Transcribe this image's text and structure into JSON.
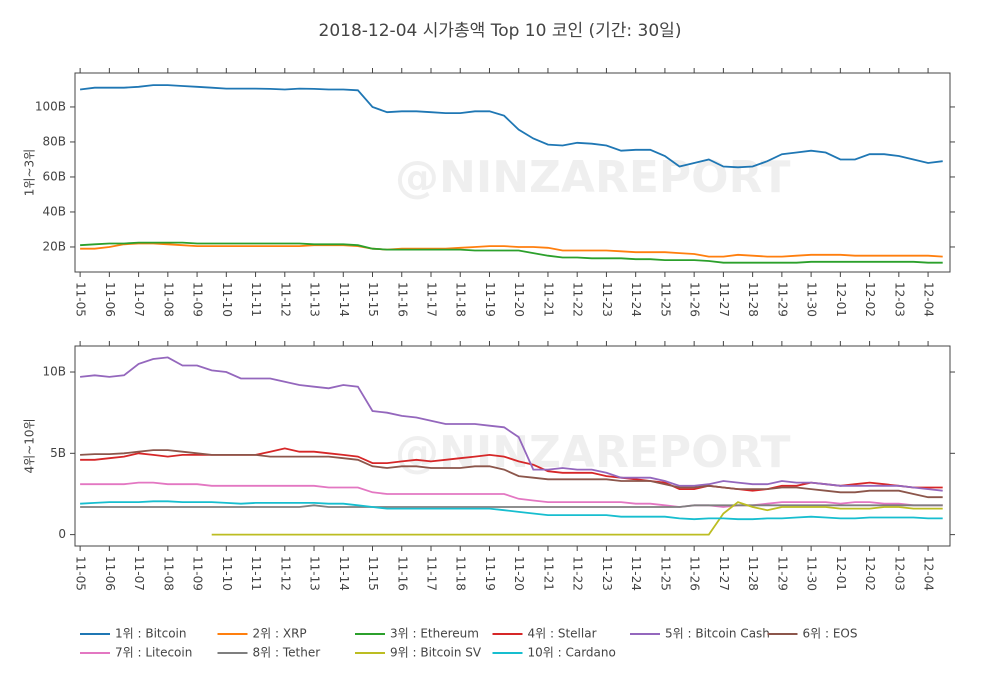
{
  "title": "2018-12-04 시가총액 Top 10 코인 (기간: 30일)",
  "watermark": "@NINZAREPORT",
  "chart_data": [
    {
      "type": "line",
      "ylabel": "1위~3위",
      "categories": [
        "11-05",
        null,
        "11-06",
        null,
        "11-07",
        null,
        "11-08",
        null,
        "11-09",
        null,
        "11-10",
        null,
        "11-11",
        null,
        "11-12",
        null,
        "11-13",
        null,
        "11-14",
        null,
        "11-15",
        null,
        "11-16",
        null,
        "11-17",
        null,
        "11-18",
        null,
        "11-19",
        null,
        "11-20",
        null,
        "11-21",
        null,
        "11-22",
        null,
        "11-23",
        null,
        "11-24",
        null,
        "11-25",
        null,
        "11-26",
        null,
        "11-27",
        null,
        "11-28",
        null,
        "11-29",
        null,
        "11-30",
        null,
        "12-01",
        null,
        "12-02",
        null,
        "12-03",
        null,
        "12-04",
        null
      ],
      "ylim": [
        5.7,
        119.4
      ],
      "yticks": [
        {
          "value": 20,
          "label": "20B"
        },
        {
          "value": 40,
          "label": "40B"
        },
        {
          "value": 60,
          "label": "60B"
        },
        {
          "value": 80,
          "label": "80B"
        },
        {
          "value": 100,
          "label": "100B"
        }
      ],
      "grid": false,
      "series": [
        {
          "name": "1위 : Bitcoin",
          "color": "#1f77b4",
          "values": [
            110,
            111,
            111,
            111,
            111.5,
            112.5,
            112.5,
            112,
            111.5,
            111,
            110.5,
            110.5,
            110.5,
            110.3,
            110,
            110.5,
            110.3,
            110,
            110,
            109.5,
            100,
            97,
            97.5,
            97.5,
            97,
            96.5,
            96.5,
            97.5,
            97.5,
            95,
            87,
            82,
            78.5,
            78,
            79.5,
            79,
            78,
            75,
            75.5,
            75.5,
            72,
            66,
            68,
            70,
            66,
            65.5,
            66,
            69,
            73,
            74,
            75,
            74,
            70,
            70,
            73,
            73,
            72,
            70,
            68,
            69
          ]
        },
        {
          "name": "2위 : XRP",
          "color": "#ff7f0e",
          "values": [
            19,
            19,
            20,
            21.5,
            22,
            22,
            21.5,
            21,
            20.5,
            20.5,
            20.5,
            20.5,
            20.5,
            20.5,
            20.5,
            20.5,
            21,
            21,
            21,
            20.5,
            19,
            18.5,
            19,
            19,
            19,
            19,
            19.5,
            20,
            20.5,
            20.5,
            20,
            20,
            19.5,
            18,
            18,
            18,
            18,
            17.5,
            17,
            17,
            17,
            16.5,
            16,
            14.5,
            14.5,
            15.5,
            15,
            14.5,
            14.5,
            15,
            15.5,
            15.5,
            15.5,
            15,
            15,
            15,
            15,
            15,
            15,
            14.5
          ]
        },
        {
          "name": "3위 : Ethereum",
          "color": "#2ca02c",
          "values": [
            21,
            21.5,
            22,
            22,
            22.5,
            22.5,
            22.5,
            22.5,
            22,
            22,
            22,
            22,
            22,
            22,
            22,
            22,
            21.5,
            21.5,
            21.5,
            21,
            19,
            18.5,
            18.5,
            18.5,
            18.5,
            18.5,
            18.5,
            18,
            18,
            18,
            18,
            16.5,
            15,
            14,
            14,
            13.5,
            13.5,
            13.5,
            13,
            13,
            12.5,
            12.5,
            12.5,
            12,
            11,
            11,
            11,
            11,
            11,
            11,
            11.5,
            11.5,
            11.5,
            11.5,
            11.5,
            11.5,
            11.5,
            11.5,
            11,
            11
          ]
        }
      ]
    },
    {
      "type": "line",
      "ylabel": "4위~10위",
      "categories": [
        "11-05",
        null,
        "11-06",
        null,
        "11-07",
        null,
        "11-08",
        null,
        "11-09",
        null,
        "11-10",
        null,
        "11-11",
        null,
        "11-12",
        null,
        "11-13",
        null,
        "11-14",
        null,
        "11-15",
        null,
        "11-16",
        null,
        "11-17",
        null,
        "11-18",
        null,
        "11-19",
        null,
        "11-20",
        null,
        "11-21",
        null,
        "11-22",
        null,
        "11-23",
        null,
        "11-24",
        null,
        "11-25",
        null,
        "11-26",
        null,
        "11-27",
        null,
        "11-28",
        null,
        "11-29",
        null,
        "11-30",
        null,
        "12-01",
        null,
        "12-02",
        null,
        "12-03",
        null,
        "12-04",
        null
      ],
      "ylim": [
        -0.7,
        11.6
      ],
      "yticks": [
        0,
        {
          "value": 5,
          "label": "5B"
        },
        {
          "value": 10,
          "label": "10B"
        }
      ],
      "grid": false,
      "series": [
        {
          "name": "4위 : Stellar",
          "color": "#d62728",
          "values": [
            4.6,
            4.6,
            4.7,
            4.8,
            5.0,
            4.9,
            4.8,
            4.9,
            4.9,
            4.9,
            4.9,
            4.9,
            4.9,
            5.1,
            5.3,
            5.1,
            5.1,
            5.0,
            4.9,
            4.8,
            4.4,
            4.4,
            4.5,
            4.6,
            4.5,
            4.6,
            4.7,
            4.8,
            4.9,
            4.8,
            4.5,
            4.3,
            3.9,
            3.8,
            3.8,
            3.8,
            3.6,
            3.5,
            3.4,
            3.3,
            3.2,
            2.8,
            2.8,
            3.0,
            2.9,
            2.8,
            2.7,
            2.8,
            3.0,
            3.0,
            3.2,
            3.1,
            3.0,
            3.1,
            3.2,
            3.1,
            3.0,
            2.9,
            2.9,
            2.9
          ]
        },
        {
          "name": "5위 : Bitcoin Cash",
          "color": "#9467bd",
          "values": [
            9.7,
            9.8,
            9.7,
            9.8,
            10.5,
            10.8,
            10.9,
            10.4,
            10.4,
            10.1,
            10,
            9.6,
            9.6,
            9.6,
            9.4,
            9.2,
            9.1,
            9.0,
            9.2,
            9.1,
            7.6,
            7.5,
            7.3,
            7.2,
            7.0,
            6.8,
            6.8,
            6.8,
            6.7,
            6.6,
            6.0,
            4.0,
            4.0,
            4.1,
            4.0,
            4.0,
            3.8,
            3.5,
            3.5,
            3.5,
            3.3,
            3.0,
            3.0,
            3.1,
            3.3,
            3.2,
            3.1,
            3.1,
            3.3,
            3.2,
            3.2,
            3.1,
            3.0,
            3.0,
            3.0,
            3.0,
            3.0,
            2.9,
            2.8,
            2.7
          ]
        },
        {
          "name": "6위 : EOS",
          "color": "#8c564b",
          "values": [
            4.9,
            4.95,
            4.95,
            5.0,
            5.1,
            5.2,
            5.2,
            5.1,
            5.0,
            4.9,
            4.9,
            4.9,
            4.9,
            4.8,
            4.8,
            4.8,
            4.8,
            4.8,
            4.7,
            4.6,
            4.2,
            4.1,
            4.2,
            4.2,
            4.1,
            4.1,
            4.1,
            4.2,
            4.2,
            4.0,
            3.6,
            3.5,
            3.4,
            3.4,
            3.4,
            3.4,
            3.4,
            3.3,
            3.3,
            3.3,
            3.1,
            2.9,
            2.9,
            3.0,
            2.9,
            2.8,
            2.8,
            2.8,
            2.9,
            2.9,
            2.8,
            2.7,
            2.6,
            2.6,
            2.7,
            2.7,
            2.7,
            2.5,
            2.3,
            2.3
          ]
        },
        {
          "name": "7위 : Litecoin",
          "color": "#e377c2",
          "values": [
            3.1,
            3.1,
            3.1,
            3.1,
            3.2,
            3.2,
            3.1,
            3.1,
            3.1,
            3.0,
            3.0,
            3.0,
            3.0,
            3.0,
            3.0,
            3.0,
            3.0,
            2.9,
            2.9,
            2.9,
            2.6,
            2.5,
            2.5,
            2.5,
            2.5,
            2.5,
            2.5,
            2.5,
            2.5,
            2.5,
            2.2,
            2.1,
            2.0,
            2.0,
            2.0,
            2.0,
            2.0,
            2.0,
            1.9,
            1.9,
            1.8,
            1.7,
            1.8,
            1.8,
            1.7,
            1.8,
            1.8,
            1.9,
            2.0,
            2.0,
            2.0,
            2.0,
            1.9,
            2.0,
            2.0,
            1.9,
            1.9,
            1.8,
            1.8,
            1.8
          ]
        },
        {
          "name": "8위 : Tether",
          "color": "#7f7f7f",
          "values": [
            1.7,
            1.7,
            1.7,
            1.7,
            1.7,
            1.7,
            1.7,
            1.7,
            1.7,
            1.7,
            1.7,
            1.7,
            1.7,
            1.7,
            1.7,
            1.7,
            1.8,
            1.7,
            1.7,
            1.7,
            1.7,
            1.7,
            1.7,
            1.7,
            1.7,
            1.7,
            1.7,
            1.7,
            1.7,
            1.7,
            1.7,
            1.7,
            1.7,
            1.7,
            1.7,
            1.7,
            1.7,
            1.7,
            1.7,
            1.7,
            1.7,
            1.7,
            1.8,
            1.8,
            1.8,
            1.8,
            1.8,
            1.8,
            1.8,
            1.8,
            1.8,
            1.8,
            1.8,
            1.8,
            1.8,
            1.8,
            1.8,
            1.8,
            1.8,
            1.8
          ]
        },
        {
          "name": "9위 : Bitcoin SV",
          "color": "#bcbd22",
          "values": [
            null,
            null,
            null,
            null,
            null,
            null,
            null,
            null,
            null,
            0,
            0,
            0,
            0,
            0,
            0,
            0,
            0,
            0,
            0,
            0,
            0,
            0,
            0,
            0,
            0,
            0,
            0,
            0,
            0,
            0,
            0,
            0,
            0,
            0,
            0,
            0,
            0,
            0,
            0,
            0,
            0,
            0,
            0,
            0,
            1.3,
            2.0,
            1.7,
            1.5,
            1.7,
            1.7,
            1.7,
            1.7,
            1.6,
            1.6,
            1.6,
            1.7,
            1.7,
            1.6,
            1.6,
            1.6
          ]
        },
        {
          "name": "10위 : Cardano",
          "color": "#17becf",
          "values": [
            1.9,
            1.95,
            2.0,
            2.0,
            2.0,
            2.05,
            2.05,
            2.0,
            2.0,
            2.0,
            1.95,
            1.9,
            1.95,
            1.95,
            1.95,
            1.95,
            1.95,
            1.9,
            1.9,
            1.8,
            1.7,
            1.6,
            1.6,
            1.6,
            1.6,
            1.6,
            1.6,
            1.6,
            1.6,
            1.5,
            1.4,
            1.3,
            1.2,
            1.2,
            1.2,
            1.2,
            1.2,
            1.1,
            1.1,
            1.1,
            1.1,
            1.0,
            0.95,
            1.0,
            1.0,
            0.95,
            0.95,
            1.0,
            1.0,
            1.05,
            1.1,
            1.05,
            1.0,
            1.0,
            1.05,
            1.05,
            1.05,
            1.05,
            1.0,
            1.0
          ]
        }
      ]
    }
  ]
}
